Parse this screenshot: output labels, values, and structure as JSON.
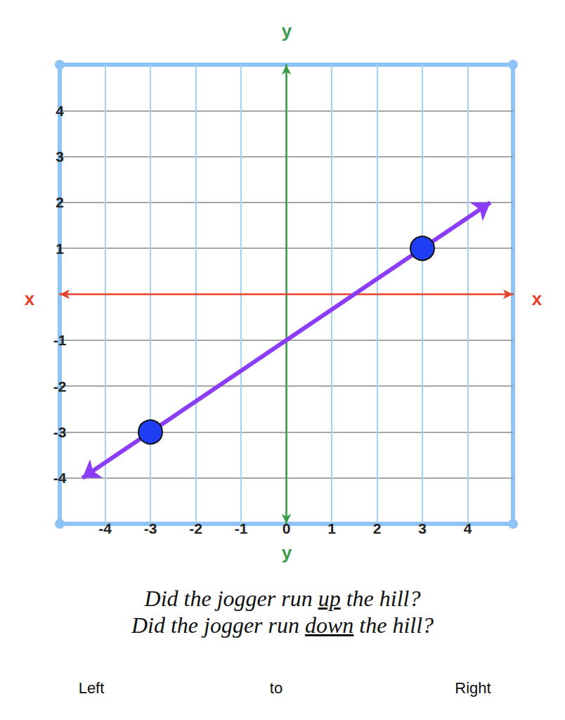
{
  "chart_data": {
    "type": "line",
    "xlim": [
      -5,
      5
    ],
    "xticks": [
      -4,
      -3,
      -2,
      -1,
      0,
      1,
      2,
      3,
      4
    ],
    "ylim": [
      -5,
      5
    ],
    "yticks": [
      -4,
      -3,
      -2,
      -1,
      1,
      2,
      3,
      4
    ],
    "xlabel": "x",
    "ylabel": "y",
    "grid": true,
    "series": [
      {
        "type": "line",
        "line_style": "arrows",
        "color": "#8b3cf7",
        "x": [
          -4.5,
          4.5
        ],
        "values": [
          -4,
          2
        ]
      },
      {
        "type": "scatter",
        "marker": "circle",
        "color": "#1f3df2",
        "x": [
          -3,
          3
        ],
        "values": [
          -3,
          1
        ]
      }
    ],
    "annotations": [
      "Did the jogger run up the hill?",
      "Did the jogger run down the hill?"
    ],
    "underlined": [
      "up",
      "down"
    ],
    "footer": [
      "Left",
      "to",
      "Right"
    ]
  }
}
